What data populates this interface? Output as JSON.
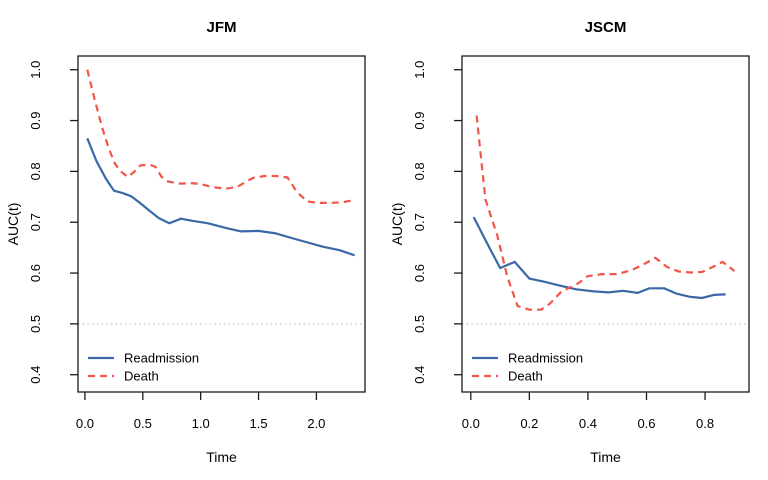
{
  "figure": {
    "background": "#ffffff"
  },
  "colors": {
    "readmission": "#3a69a5",
    "death": "#f2554a",
    "reference": "#b0b0b0",
    "axis": "#000000"
  },
  "legend": {
    "items": [
      {
        "label": "Readmission",
        "series": "readmission",
        "dash": "solid"
      },
      {
        "label": "Death",
        "series": "death",
        "dash": "dashed"
      }
    ]
  },
  "chart_data": [
    {
      "type": "line",
      "title": "JFM",
      "xlabel": "Time",
      "ylabel": "AUC(t)",
      "xlim": [
        -0.06,
        2.42
      ],
      "ylim": [
        0.366,
        1.027
      ],
      "xticks": [
        0.0,
        0.5,
        1.0,
        1.5,
        2.0
      ],
      "xtick_labels": [
        "0.0",
        "0.5",
        "1.0",
        "1.5",
        "2.0"
      ],
      "yticks": [
        0.4,
        0.5,
        0.6,
        0.7,
        0.8,
        0.9,
        1.0
      ],
      "ytick_labels": [
        "0.4",
        "0.5",
        "0.6",
        "0.7",
        "0.8",
        "0.9",
        "1.0"
      ],
      "grid": false,
      "legend_position": "bottom-left",
      "reference_line": {
        "y": 0.5,
        "style": "dotted"
      },
      "series": [
        {
          "name": "Readmission",
          "color_key": "readmission",
          "dash": "solid",
          "x": [
            0.02,
            0.1,
            0.18,
            0.25,
            0.33,
            0.4,
            0.47,
            0.56,
            0.64,
            0.73,
            0.83,
            0.92,
            1.06,
            1.23,
            1.35,
            1.5,
            1.65,
            1.8,
            1.91,
            2.05,
            2.2,
            2.33
          ],
          "y": [
            0.865,
            0.82,
            0.786,
            0.762,
            0.757,
            0.751,
            0.739,
            0.722,
            0.708,
            0.698,
            0.707,
            0.703,
            0.698,
            0.688,
            0.682,
            0.683,
            0.678,
            0.668,
            0.661,
            0.652,
            0.645,
            0.635
          ]
        },
        {
          "name": "Death",
          "color_key": "death",
          "dash": "dashed",
          "x": [
            0.02,
            0.08,
            0.15,
            0.21,
            0.26,
            0.31,
            0.37,
            0.43,
            0.48,
            0.56,
            0.61,
            0.66,
            0.72,
            0.82,
            0.92,
            1.0,
            1.1,
            1.22,
            1.32,
            1.45,
            1.55,
            1.65,
            1.75,
            1.83,
            1.92,
            2.02,
            2.12,
            2.22,
            2.33
          ],
          "y": [
            1.0,
            0.945,
            0.885,
            0.843,
            0.815,
            0.8,
            0.789,
            0.8,
            0.812,
            0.813,
            0.809,
            0.79,
            0.78,
            0.776,
            0.777,
            0.775,
            0.769,
            0.766,
            0.77,
            0.787,
            0.791,
            0.791,
            0.788,
            0.76,
            0.741,
            0.738,
            0.738,
            0.739,
            0.744
          ]
        }
      ]
    },
    {
      "type": "line",
      "title": "JSCM",
      "xlabel": "Time",
      "ylabel": "AUC(t)",
      "xlim": [
        -0.03,
        0.95
      ],
      "ylim": [
        0.366,
        1.027
      ],
      "xticks": [
        0.0,
        0.2,
        0.4,
        0.6,
        0.8
      ],
      "xtick_labels": [
        "0.0",
        "0.2",
        "0.4",
        "0.6",
        "0.8"
      ],
      "yticks": [
        0.4,
        0.5,
        0.6,
        0.7,
        0.8,
        0.9,
        1.0
      ],
      "ytick_labels": [
        "0.4",
        "0.5",
        "0.6",
        "0.7",
        "0.8",
        "0.9",
        "1.0"
      ],
      "grid": false,
      "legend_position": "bottom-left",
      "reference_line": {
        "y": 0.5,
        "style": "dotted"
      },
      "series": [
        {
          "name": "Readmission",
          "color_key": "readmission",
          "dash": "solid",
          "x": [
            0.01,
            0.05,
            0.1,
            0.15,
            0.2,
            0.25,
            0.3,
            0.36,
            0.42,
            0.47,
            0.52,
            0.57,
            0.61,
            0.66,
            0.7,
            0.75,
            0.79,
            0.83,
            0.87
          ],
          "y": [
            0.71,
            0.665,
            0.61,
            0.622,
            0.589,
            0.583,
            0.576,
            0.568,
            0.564,
            0.562,
            0.565,
            0.561,
            0.57,
            0.57,
            0.56,
            0.553,
            0.551,
            0.557,
            0.558
          ]
        },
        {
          "name": "Death",
          "color_key": "death",
          "dash": "dashed",
          "x": [
            0.02,
            0.05,
            0.09,
            0.125,
            0.16,
            0.2,
            0.24,
            0.27,
            0.31,
            0.36,
            0.4,
            0.45,
            0.5,
            0.55,
            0.59,
            0.63,
            0.67,
            0.71,
            0.75,
            0.79,
            0.83,
            0.86,
            0.9
          ],
          "y": [
            0.91,
            0.745,
            0.675,
            0.592,
            0.535,
            0.528,
            0.528,
            0.54,
            0.564,
            0.577,
            0.594,
            0.598,
            0.598,
            0.606,
            0.617,
            0.63,
            0.612,
            0.603,
            0.601,
            0.602,
            0.613,
            0.622,
            0.604
          ]
        }
      ]
    }
  ]
}
